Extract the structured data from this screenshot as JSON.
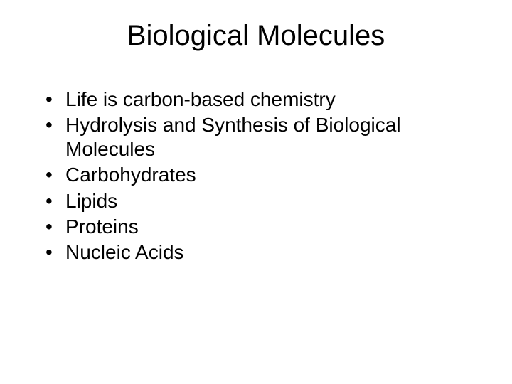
{
  "slide": {
    "title": "Biological Molecules",
    "bullets": [
      "Life is carbon-based chemistry",
      "Hydrolysis and Synthesis of Biological Molecules",
      "Carbohydrates",
      "Lipids",
      "Proteins",
      "Nucleic Acids"
    ],
    "style": {
      "background_color": "#ffffff",
      "text_color": "#000000",
      "title_fontsize": 40,
      "bullet_fontsize": 28,
      "font_family": "Arial"
    }
  }
}
